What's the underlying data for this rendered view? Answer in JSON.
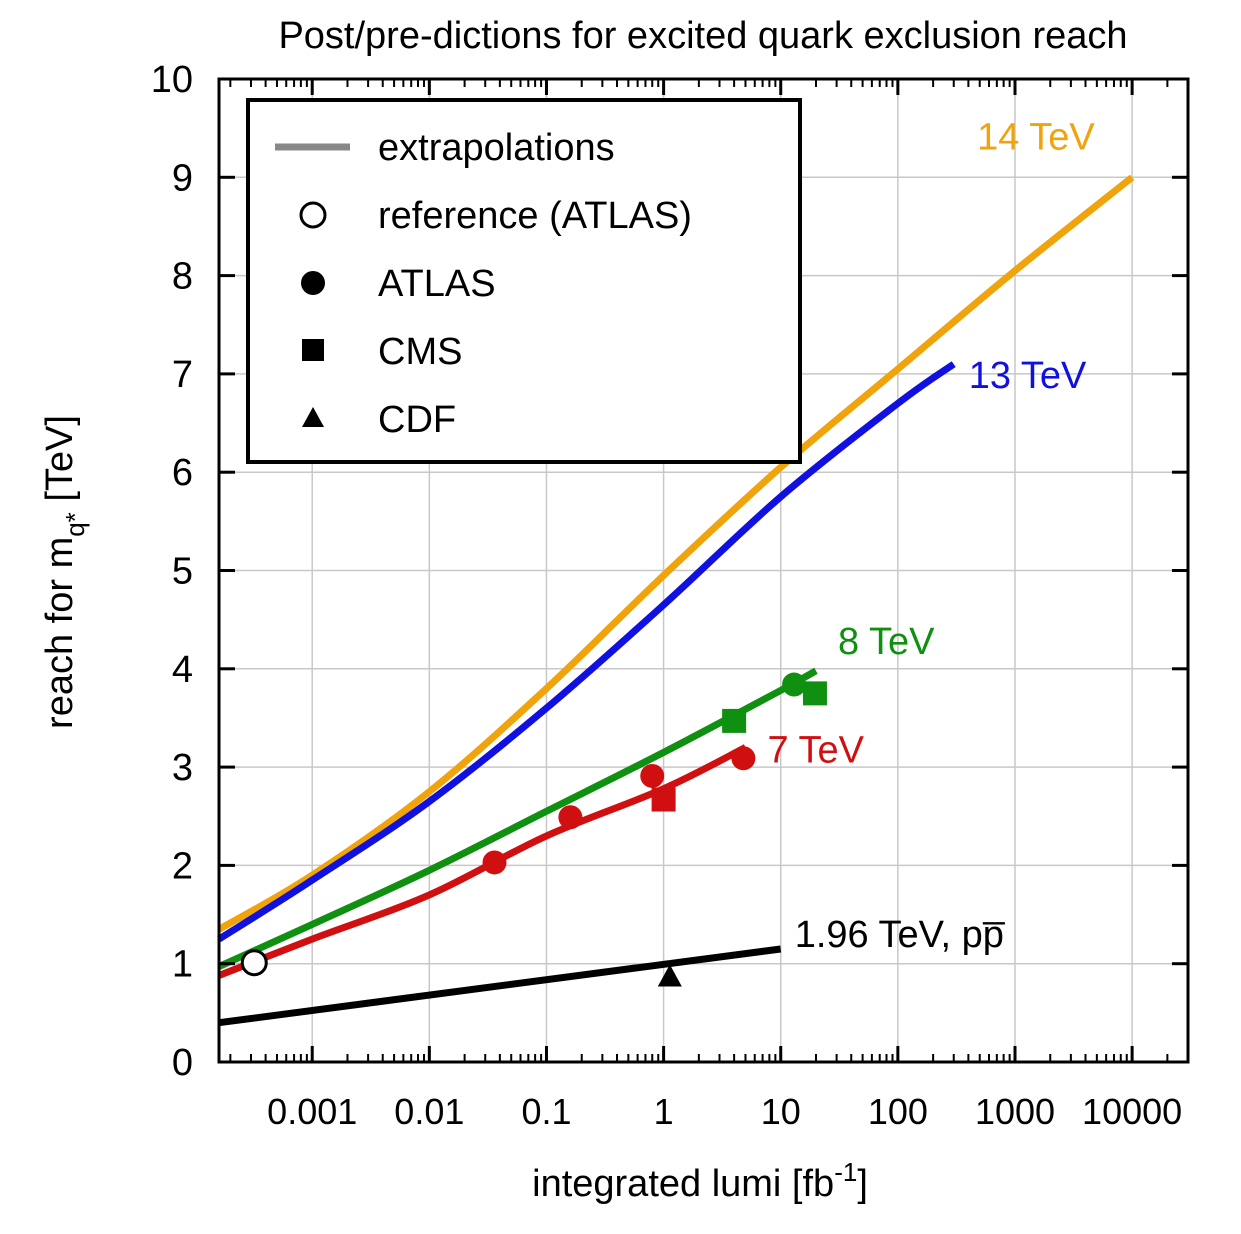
{
  "chart_data": {
    "type": "line",
    "title": "Post/pre-dictions for excited quark exclusion reach",
    "xlabel": {
      "base": "integrated lumi [fb",
      "sup": "-1",
      "close": "]"
    },
    "ylabel": {
      "base": "reach for m",
      "sub": "q*",
      "close": " [TeV]"
    },
    "xscale": "log",
    "xlim": [
      0.00016,
      30000
    ],
    "ylim": [
      0,
      10
    ],
    "xticks": [
      {
        "value": 0.001,
        "label": "0.001"
      },
      {
        "value": 0.01,
        "label": "0.01"
      },
      {
        "value": 0.1,
        "label": "0.1"
      },
      {
        "value": 1,
        "label": "1"
      },
      {
        "value": 10,
        "label": "10"
      },
      {
        "value": 100,
        "label": "100"
      },
      {
        "value": 1000,
        "label": "1000"
      },
      {
        "value": 10000,
        "label": "10000"
      }
    ],
    "yticks": [
      {
        "value": 0,
        "label": "0"
      },
      {
        "value": 1,
        "label": "1"
      },
      {
        "value": 2,
        "label": "2"
      },
      {
        "value": 3,
        "label": "3"
      },
      {
        "value": 4,
        "label": "4"
      },
      {
        "value": 5,
        "label": "5"
      },
      {
        "value": 6,
        "label": "6"
      },
      {
        "value": 7,
        "label": "7"
      },
      {
        "value": 8,
        "label": "8"
      },
      {
        "value": 9,
        "label": "9"
      },
      {
        "value": 10,
        "label": "10"
      }
    ],
    "grid": true,
    "legend": {
      "position": "top-left",
      "entries": [
        {
          "label": "extrapolations",
          "marker": "line"
        },
        {
          "label": "reference (ATLAS)",
          "marker": "open-circle"
        },
        {
          "label": "ATLAS",
          "marker": "filled-circle"
        },
        {
          "label": "CMS",
          "marker": "filled-square"
        },
        {
          "label": "CDF",
          "marker": "filled-triangle"
        }
      ]
    },
    "series": [
      {
        "name": "14 TeV",
        "color": "#f0a30a",
        "x": [
          0.00016,
          0.001,
          0.01,
          0.1,
          1,
          10,
          100,
          1000,
          10000
        ],
        "y": [
          1.35,
          1.9,
          2.75,
          3.8,
          4.95,
          6.05,
          7.05,
          8.05,
          9.0
        ]
      },
      {
        "name": "13 TeV",
        "color": "#1010e0",
        "x": [
          0.00016,
          0.001,
          0.01,
          0.1,
          1,
          10,
          100,
          300
        ],
        "y": [
          1.25,
          1.85,
          2.65,
          3.6,
          4.65,
          5.75,
          6.7,
          7.1
        ]
      },
      {
        "name": "8 TeV",
        "color": "#109010",
        "x": [
          0.00016,
          0.001,
          0.01,
          0.1,
          1,
          10,
          20
        ],
        "y": [
          0.97,
          1.4,
          1.95,
          2.55,
          3.15,
          3.78,
          3.98
        ]
      },
      {
        "name": "7 TeV",
        "color": "#d01010",
        "x": [
          0.00016,
          0.001,
          0.01,
          0.1,
          1,
          5
        ],
        "y": [
          0.88,
          1.25,
          1.7,
          2.3,
          2.78,
          3.2
        ]
      },
      {
        "name": "1.96 TeV, pp̅",
        "color": "#000000",
        "x": [
          0.00016,
          10
        ],
        "y": [
          0.4,
          1.15
        ]
      }
    ],
    "points": [
      {
        "set": "reference (ATLAS)",
        "marker": "open-circle",
        "color": "#000000",
        "x": 0.00032,
        "y": 1.01
      },
      {
        "set": "ATLAS",
        "marker": "filled-circle",
        "color": "#d01010",
        "x": 0.036,
        "y": 2.03
      },
      {
        "set": "ATLAS",
        "marker": "filled-circle",
        "color": "#d01010",
        "x": 0.16,
        "y": 2.49
      },
      {
        "set": "ATLAS",
        "marker": "filled-circle",
        "color": "#d01010",
        "x": 0.8,
        "y": 2.91
      },
      {
        "set": "ATLAS",
        "marker": "filled-circle",
        "color": "#d01010",
        "x": 4.8,
        "y": 3.09
      },
      {
        "set": "ATLAS",
        "marker": "filled-circle",
        "color": "#109010",
        "x": 13,
        "y": 3.84
      },
      {
        "set": "CMS",
        "marker": "filled-square",
        "color": "#d01010",
        "x": 1.0,
        "y": 2.67
      },
      {
        "set": "CMS",
        "marker": "filled-square",
        "color": "#109010",
        "x": 4.0,
        "y": 3.47
      },
      {
        "set": "CMS",
        "marker": "filled-square",
        "color": "#109010",
        "x": 19.6,
        "y": 3.75
      },
      {
        "set": "CDF",
        "marker": "filled-triangle",
        "color": "#000000",
        "x": 1.13,
        "y": 0.87
      }
    ]
  }
}
